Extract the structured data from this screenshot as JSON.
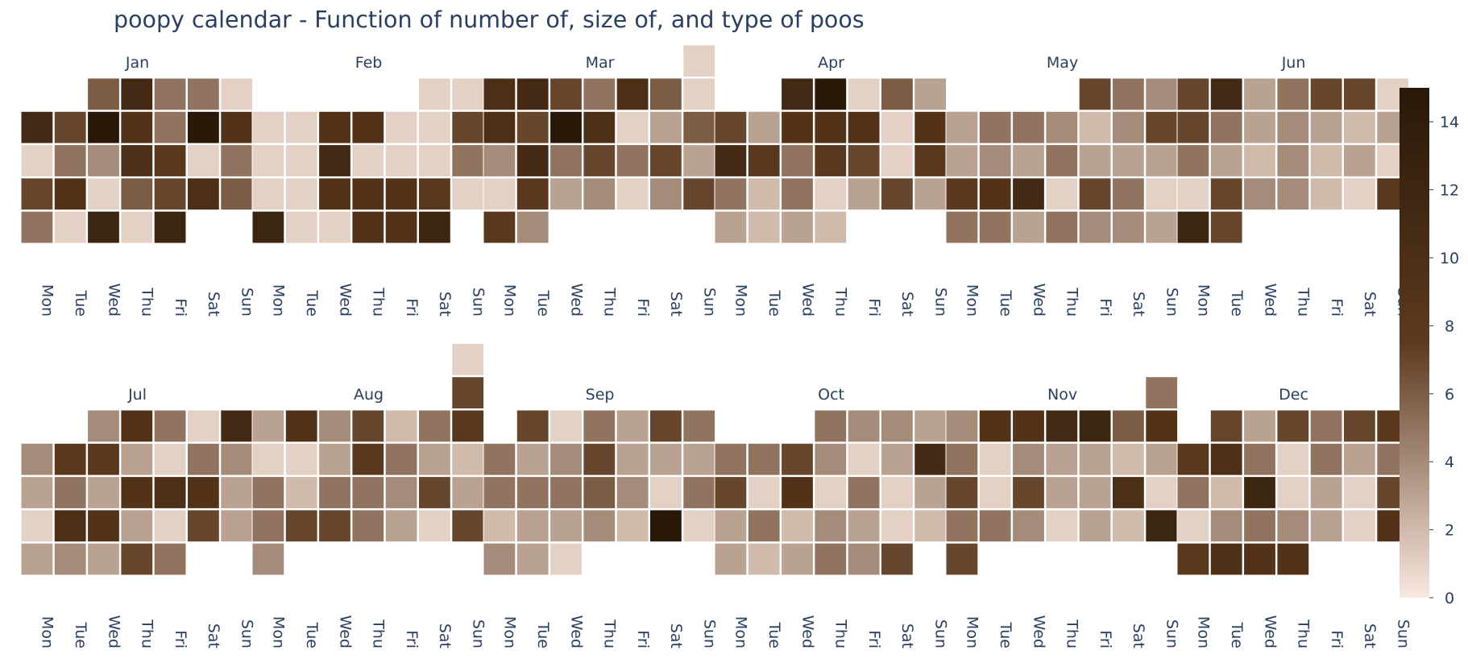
{
  "title": "poopy calendar - Function of number of, size of, and type of poos",
  "chart_data": {
    "type": "heatmap",
    "title": "poopy calendar - Function of number of, size of, and type of poos",
    "weekdays": [
      "Mon",
      "Tue",
      "Wed",
      "Thu",
      "Fri",
      "Sat",
      "Sun"
    ],
    "colorscale": [
      "#f9e8df",
      "#5c3a1f",
      "#291808"
    ],
    "zmin": 0,
    "zmax": 15,
    "colorbar_ticks": [
      0,
      2,
      4,
      6,
      8,
      10,
      12,
      14
    ],
    "months": [
      {
        "name": "Jan",
        "weeks": [
          [
            null,
            null,
            6,
            11,
            5,
            5,
            1
          ],
          [
            11,
            7,
            15,
            9,
            5,
            15,
            9
          ],
          [
            1,
            5,
            4,
            10,
            8,
            1,
            5
          ],
          [
            7,
            9,
            1,
            6,
            7,
            10,
            6
          ],
          [
            5,
            1,
            12,
            1,
            12,
            null,
            null
          ]
        ]
      },
      {
        "name": "Feb",
        "weeks": [
          [
            null,
            null,
            null,
            null,
            null,
            1,
            1
          ],
          [
            1,
            1,
            9,
            9,
            1,
            1,
            7
          ],
          [
            1,
            1,
            11,
            1,
            1,
            1,
            5
          ],
          [
            1,
            1,
            9,
            9,
            9,
            8,
            1
          ],
          [
            12,
            1,
            1,
            9,
            9,
            12,
            null
          ]
        ]
      },
      {
        "name": "Mar",
        "weeks": [
          [
            null,
            null,
            null,
            null,
            null,
            null,
            1
          ],
          [
            10,
            11,
            7,
            5,
            10,
            6,
            1
          ],
          [
            10,
            7,
            15,
            10,
            1,
            3,
            6
          ],
          [
            4,
            11,
            5,
            7,
            5,
            7,
            3
          ],
          [
            1,
            8,
            3,
            4,
            1,
            4,
            7
          ],
          [
            8,
            4,
            null,
            null,
            null,
            null,
            null
          ]
        ]
      },
      {
        "name": "Apr",
        "weeks": [
          [
            null,
            null,
            11,
            15,
            1,
            6,
            3
          ],
          [
            7,
            3,
            9,
            9,
            9,
            1,
            9
          ],
          [
            11,
            8,
            5,
            8,
            7,
            1,
            8
          ],
          [
            5,
            2,
            5,
            1,
            3,
            7,
            3
          ],
          [
            3,
            2,
            3,
            2,
            null,
            null,
            null
          ]
        ]
      },
      {
        "name": "May",
        "weeks": [
          [
            null,
            null,
            null,
            null,
            7,
            5,
            4
          ],
          [
            3,
            5,
            5,
            4,
            2,
            4,
            7
          ],
          [
            3,
            4,
            3,
            5,
            3,
            3,
            3
          ],
          [
            8,
            9,
            11,
            1,
            7,
            5,
            1
          ],
          [
            5,
            5,
            3,
            5,
            4,
            4,
            3
          ]
        ]
      },
      {
        "name": "Jun",
        "weeks": [
          [
            7,
            11,
            3,
            5,
            7,
            7,
            1
          ],
          [
            7,
            5,
            3,
            4,
            3,
            2,
            3
          ],
          [
            5,
            3,
            2,
            4,
            2,
            3,
            1
          ],
          [
            1,
            7,
            4,
            4,
            2,
            1,
            8
          ],
          [
            12,
            7,
            null,
            null,
            null,
            null,
            null
          ]
        ]
      },
      {
        "name": "Jul",
        "weeks": [
          [
            null,
            null,
            4,
            9,
            5,
            1,
            11
          ],
          [
            4,
            8,
            8,
            3,
            1,
            5,
            4
          ],
          [
            3,
            5,
            3,
            9,
            10,
            9,
            3
          ],
          [
            1,
            10,
            9,
            3,
            1,
            7,
            3
          ],
          [
            3,
            4,
            3,
            7,
            5,
            null,
            null
          ]
        ]
      },
      {
        "name": "Aug",
        "weeks": [
          [
            null,
            null,
            null,
            null,
            null,
            null,
            1
          ],
          [
            null,
            null,
            null,
            null,
            null,
            null,
            7
          ],
          [
            3,
            9,
            4,
            7,
            2,
            5,
            8
          ],
          [
            1,
            1,
            3,
            8,
            5,
            3,
            2
          ],
          [
            5,
            2,
            5,
            5,
            4,
            7,
            3
          ],
          [
            5,
            7,
            7,
            5,
            3,
            1,
            7
          ],
          [
            4,
            null,
            null,
            null,
            null,
            null,
            null
          ]
        ]
      },
      {
        "name": "Sep",
        "weeks": [
          [
            null,
            7,
            1,
            5,
            3,
            7,
            5
          ],
          [
            5,
            3,
            4,
            7,
            3,
            3,
            3
          ],
          [
            5,
            5,
            5,
            6,
            4,
            1,
            5
          ],
          [
            2,
            3,
            3,
            4,
            2,
            15,
            1
          ],
          [
            4,
            3,
            1,
            null,
            null,
            null,
            null
          ]
        ]
      },
      {
        "name": "Oct",
        "weeks": [
          [
            null,
            null,
            null,
            5,
            4,
            4,
            3
          ],
          [
            5,
            5,
            7,
            4,
            1,
            3,
            11
          ],
          [
            7,
            1,
            9,
            1,
            5,
            1,
            3
          ],
          [
            3,
            5,
            2,
            4,
            3,
            1,
            2
          ],
          [
            3,
            2,
            3,
            5,
            4,
            7,
            null
          ]
        ]
      },
      {
        "name": "Nov",
        "weeks": [
          [
            null,
            null,
            null,
            null,
            null,
            null,
            5
          ],
          [
            4,
            9,
            9,
            11,
            12,
            6,
            9
          ],
          [
            5,
            1,
            4,
            3,
            3,
            2,
            3
          ],
          [
            7,
            1,
            7,
            3,
            3,
            10,
            1
          ],
          [
            5,
            5,
            4,
            1,
            3,
            2,
            12
          ],
          [
            7,
            null,
            null,
            null,
            null,
            null,
            null
          ]
        ]
      },
      {
        "name": "Dec",
        "weeks": [
          [
            null,
            7,
            3,
            7,
            5,
            7,
            8
          ],
          [
            8,
            10,
            5,
            1,
            5,
            3,
            5
          ],
          [
            5,
            2,
            12,
            1,
            3,
            1,
            7
          ],
          [
            1,
            4,
            5,
            4,
            3,
            1,
            9
          ],
          [
            8,
            10,
            9,
            9,
            null,
            null,
            null
          ]
        ]
      }
    ]
  }
}
